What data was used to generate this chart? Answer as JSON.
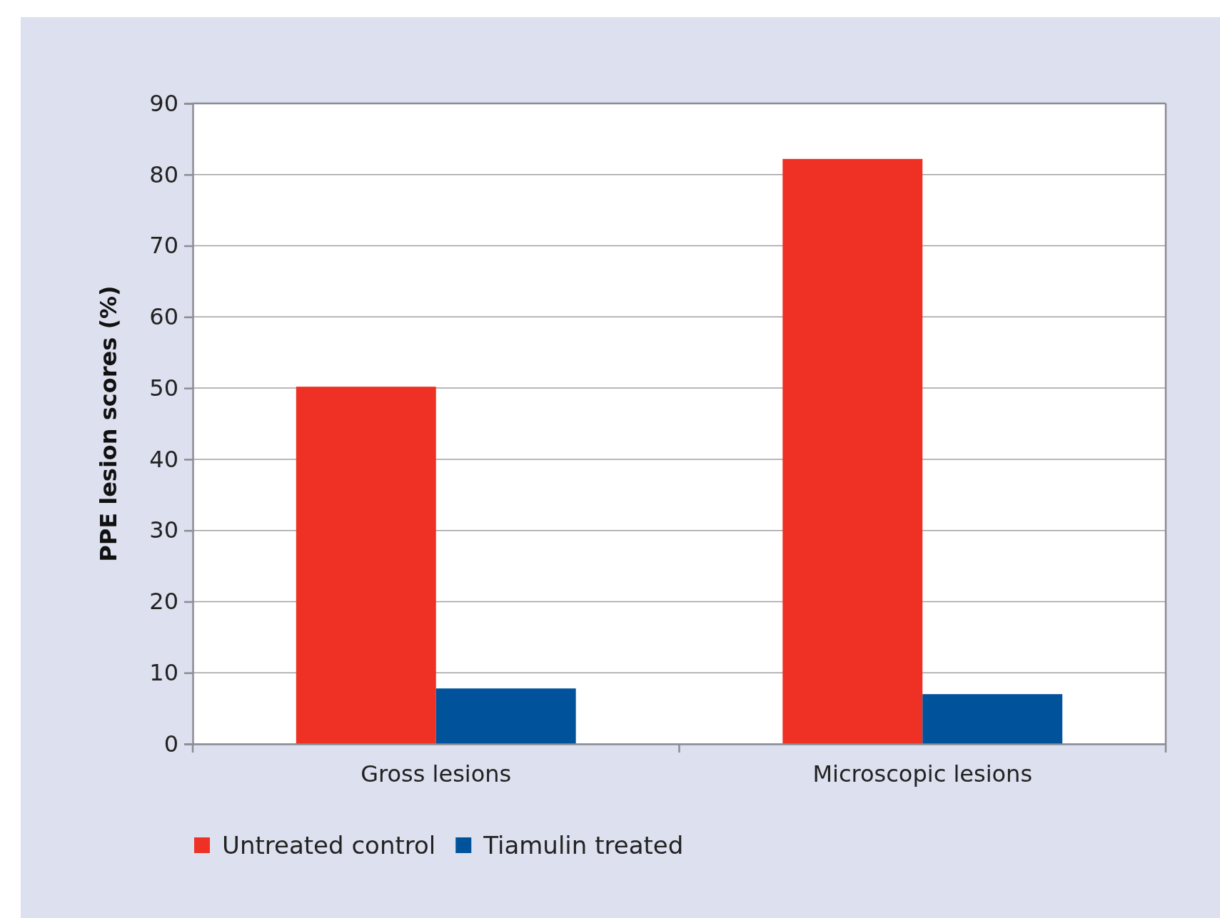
{
  "chart_data": {
    "type": "bar",
    "ylabel": "PPE lesion scores (%)",
    "categories": [
      "Gross lesions",
      "Microscopic lesions"
    ],
    "series": [
      {
        "name": "Untreated control",
        "color": "#ee3124",
        "values": [
          50.2,
          82.2
        ]
      },
      {
        "name": "Tiamulin treated",
        "color": "#00529b",
        "values": [
          7.8,
          7.0
        ]
      }
    ],
    "ylim": [
      0,
      90
    ],
    "yticks": [
      0,
      10,
      20,
      30,
      40,
      50,
      60,
      70,
      80,
      90
    ],
    "grid": "y",
    "legend": "bottom"
  }
}
